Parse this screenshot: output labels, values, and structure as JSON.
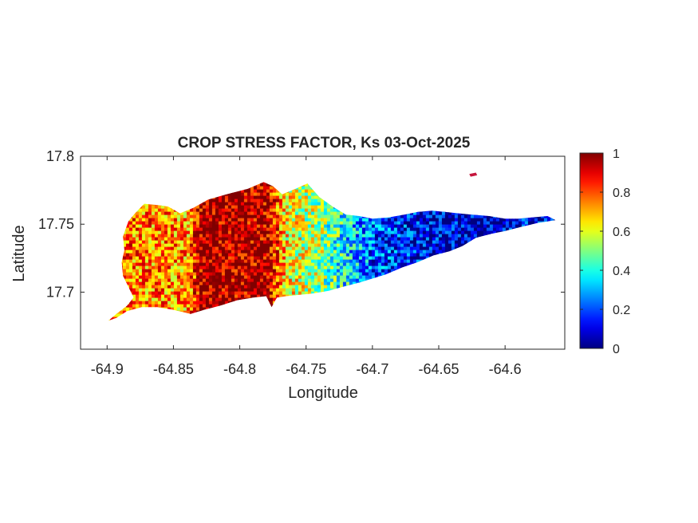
{
  "figure": {
    "title": "CROP STRESS FACTOR, Ks  03-Oct-2025",
    "xlabel": "Longitude",
    "ylabel": "Latitude",
    "x_ticks": [
      "-64.9",
      "-64.85",
      "-64.8",
      "-64.75",
      "-64.7",
      "-64.65",
      "-64.6"
    ],
    "y_ticks": [
      "17.8",
      "17.75",
      "17.7"
    ],
    "colorbar_ticks": [
      "1",
      "0.8",
      "0.6",
      "0.4",
      "0.2",
      "0"
    ]
  },
  "map": {
    "xlim": [
      -64.92,
      -64.555
    ],
    "ylim": [
      17.658,
      17.8
    ],
    "colormap": "jet",
    "color_range": [
      0,
      1
    ],
    "field_trend": [
      {
        "lon": -64.9,
        "ks": 0.78
      },
      {
        "lon": -64.84,
        "ks": 0.72
      },
      {
        "lon": -64.83,
        "ks": 0.97
      },
      {
        "lon": -64.78,
        "ks": 0.95
      },
      {
        "lon": -64.765,
        "ks": 0.62
      },
      {
        "lon": -64.74,
        "ks": 0.52
      },
      {
        "lon": -64.72,
        "ks": 0.36
      },
      {
        "lon": -64.7,
        "ks": 0.2
      },
      {
        "lon": -64.66,
        "ks": 0.1
      },
      {
        "lon": -64.62,
        "ks": 0.06
      },
      {
        "lon": -64.56,
        "ks": 0.12
      }
    ],
    "noise_amplitude": 0.2,
    "outline": [
      [
        -64.899,
        17.679
      ],
      [
        -64.893,
        17.684
      ],
      [
        -64.885,
        17.69
      ],
      [
        -64.88,
        17.696
      ],
      [
        -64.884,
        17.704
      ],
      [
        -64.888,
        17.712
      ],
      [
        -64.889,
        17.722
      ],
      [
        -64.887,
        17.731
      ],
      [
        -64.888,
        17.741
      ],
      [
        -64.884,
        17.752
      ],
      [
        -64.879,
        17.758
      ],
      [
        -64.872,
        17.765
      ],
      [
        -64.861,
        17.764
      ],
      [
        -64.854,
        17.763
      ],
      [
        -64.845,
        17.758
      ],
      [
        -64.835,
        17.762
      ],
      [
        -64.824,
        17.768
      ],
      [
        -64.81,
        17.772
      ],
      [
        -64.794,
        17.776
      ],
      [
        -64.782,
        17.781
      ],
      [
        -64.775,
        17.778
      ],
      [
        -64.768,
        17.772
      ],
      [
        -64.758,
        17.776
      ],
      [
        -64.749,
        17.78
      ],
      [
        -64.74,
        17.77
      ],
      [
        -64.73,
        17.763
      ],
      [
        -64.72,
        17.757
      ],
      [
        -64.71,
        17.756
      ],
      [
        -64.7,
        17.754
      ],
      [
        -64.688,
        17.755
      ],
      [
        -64.676,
        17.757
      ],
      [
        -64.666,
        17.759
      ],
      [
        -64.655,
        17.76
      ],
      [
        -64.645,
        17.759
      ],
      [
        -64.635,
        17.758
      ],
      [
        -64.625,
        17.757
      ],
      [
        -64.612,
        17.756
      ],
      [
        -64.6,
        17.754
      ],
      [
        -64.59,
        17.754
      ],
      [
        -64.58,
        17.755
      ],
      [
        -64.568,
        17.756
      ],
      [
        -64.562,
        17.753
      ],
      [
        -64.575,
        17.751
      ],
      [
        -64.588,
        17.748
      ],
      [
        -64.6,
        17.745
      ],
      [
        -64.61,
        17.743
      ],
      [
        -64.622,
        17.74
      ],
      [
        -64.632,
        17.734
      ],
      [
        -64.642,
        17.73
      ],
      [
        -64.654,
        17.727
      ],
      [
        -64.666,
        17.722
      ],
      [
        -64.678,
        17.718
      ],
      [
        -64.69,
        17.713
      ],
      [
        -64.7,
        17.71
      ],
      [
        -64.71,
        17.707
      ],
      [
        -64.722,
        17.704
      ],
      [
        -64.733,
        17.701
      ],
      [
        -64.745,
        17.699
      ],
      [
        -64.755,
        17.698
      ],
      [
        -64.765,
        17.697
      ],
      [
        -64.772,
        17.696
      ],
      [
        -64.776,
        17.689
      ],
      [
        -64.78,
        17.697
      ],
      [
        -64.79,
        17.696
      ],
      [
        -64.802,
        17.694
      ],
      [
        -64.815,
        17.69
      ],
      [
        -64.827,
        17.687
      ],
      [
        -64.837,
        17.684
      ],
      [
        -64.85,
        17.687
      ],
      [
        -64.862,
        17.689
      ],
      [
        -64.874,
        17.689
      ],
      [
        -64.885,
        17.686
      ],
      [
        -64.893,
        17.681
      ]
    ],
    "islet": [
      [
        -64.627,
        17.787
      ],
      [
        -64.622,
        17.788
      ],
      [
        -64.621,
        17.786
      ],
      [
        -64.626,
        17.785
      ]
    ]
  }
}
